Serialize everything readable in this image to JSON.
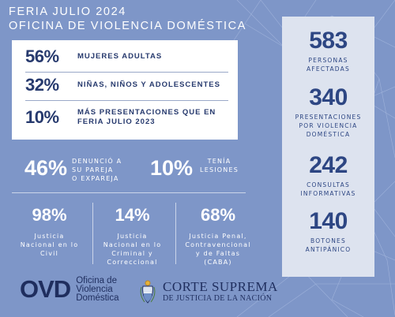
{
  "header": {
    "line1": "FERIA JULIO 2024",
    "line2": "OFICINA DE VIOLENCIA DOMÉSTICA"
  },
  "card": {
    "rows": [
      {
        "pct": "56%",
        "label": "MUJERES ADULTAS"
      },
      {
        "pct": "32%",
        "label": "NIÑAS, NIÑOS Y ADOLESCENTES"
      },
      {
        "pct": "10%",
        "label_1": "MÁS PRESENTACIONES QUE EN",
        "label_2": "FERIA JULIO 2023"
      }
    ]
  },
  "mid": {
    "left": {
      "pct": "46%",
      "l1": "DENUNCIÓ A",
      "l2": "SU PAREJA",
      "l3": "O EXPAREJA"
    },
    "right": {
      "pct": "10%",
      "l1": "TENÍA",
      "l2": "LESIONES"
    }
  },
  "bottom": [
    {
      "pct": "98%",
      "l1": "Justicia",
      "l2": "Nacional en lo",
      "l3": "Civil"
    },
    {
      "pct": "14%",
      "l1": "Justicia",
      "l2": "Nacional en lo",
      "l3": "Criminal y",
      "l4": "Correccional"
    },
    {
      "pct": "68%",
      "l1": "Justicia Penal,",
      "l2": "Contravencional",
      "l3": "y de Faltas",
      "l4": "(CABA)"
    }
  ],
  "panel": [
    {
      "num": "583",
      "l1": "PERSONAS",
      "l2": "AFECTADAS"
    },
    {
      "num": "340",
      "l1": "PRESENTACIONES",
      "l2": "POR VIOLENCIA",
      "l3": "DOMÉSTICA"
    },
    {
      "num": "242",
      "l1": "CONSULTAS",
      "l2": "INFORMATIVAS"
    },
    {
      "num": "140",
      "l1": "BOTONES",
      "l2": "ANTIPÁNICO"
    }
  ],
  "logos": {
    "ovd_mark": "OVD",
    "ovd_l1": "Oficina de",
    "ovd_l2": "Violencia",
    "ovd_l3": "Doméstica",
    "cs_l1": "CORTE SUPREMA",
    "cs_l2": "DE JUSTICIA DE LA NACIÓN"
  },
  "colors": {
    "background": "#7e96c8",
    "card": "#ffffff",
    "panel": "#dde3ef",
    "navy": "#273a6e"
  },
  "icons": [
    "network-lines-decoration",
    "argentina-coat-of-arms-icon"
  ]
}
